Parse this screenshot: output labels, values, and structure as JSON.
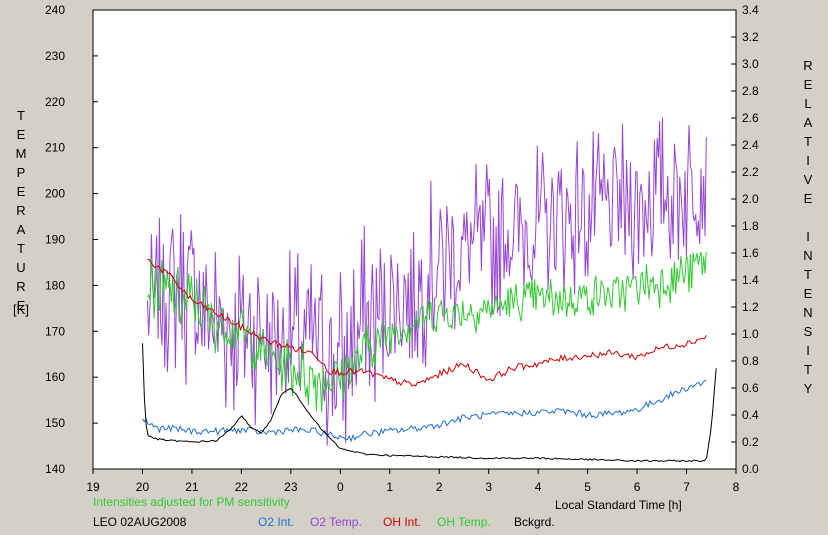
{
  "chart_data": {
    "type": "line",
    "left_axis": {
      "label": "TEMPERATURE",
      "unit": "[K]",
      "ylim": [
        140,
        240
      ],
      "ticks": [
        140,
        150,
        160,
        170,
        180,
        190,
        200,
        210,
        220,
        230,
        240
      ]
    },
    "right_axis": {
      "label": "RELATIVE INTENSITY",
      "ylim": [
        0.0,
        3.4
      ],
      "ticks": [
        "0.0",
        "0.2",
        "0.4",
        "0.6",
        "0.8",
        "1.0",
        "1.2",
        "1.4",
        "1.6",
        "1.8",
        "2.0",
        "2.2",
        "2.4",
        "2.6",
        "2.8",
        "3.0",
        "3.2",
        "3.4"
      ]
    },
    "x_axis": {
      "label": "Local Standard Time [h]",
      "xlim": [
        19,
        32
      ],
      "ticks": [
        "19",
        "20",
        "21",
        "22",
        "23",
        "0",
        "1",
        "2",
        "3",
        "4",
        "5",
        "6",
        "7",
        "8"
      ]
    },
    "note": "Intensities adjusted for PM sensitivity",
    "station_date": "LEO 02AUG2008",
    "series": [
      {
        "name": "O2 Int.",
        "axis": "right",
        "color": "#1e6ed2",
        "x": [
          20.0,
          20.3,
          20.6,
          21.0,
          21.5,
          22.0,
          22.5,
          23.0,
          23.5,
          23.9,
          24.2,
          24.5,
          25.0,
          25.5,
          26.0,
          26.5,
          27.0,
          27.5,
          28.0,
          28.5,
          29.0,
          29.5,
          30.0,
          30.5,
          31.0,
          31.4
        ],
        "values": [
          0.37,
          0.3,
          0.3,
          0.28,
          0.28,
          0.29,
          0.27,
          0.29,
          0.28,
          0.24,
          0.23,
          0.26,
          0.28,
          0.3,
          0.33,
          0.38,
          0.4,
          0.41,
          0.42,
          0.43,
          0.4,
          0.41,
          0.44,
          0.52,
          0.6,
          0.65
        ]
      },
      {
        "name": "O2 Temp.",
        "axis": "left",
        "color": "#9646d2",
        "x": [
          20.1,
          20.6,
          21.0,
          21.5,
          22.0,
          22.5,
          23.0,
          23.5,
          24.0,
          24.5,
          25.0,
          25.5,
          26.0,
          26.5,
          27.0,
          27.5,
          28.0,
          28.5,
          29.0,
          29.5,
          30.0,
          30.5,
          31.0,
          31.4
        ],
        "values": [
          175,
          180,
          178,
          172,
          171,
          170,
          168,
          168,
          162,
          172,
          176,
          180,
          185,
          188,
          190,
          192,
          193,
          195,
          196,
          197,
          198,
          200,
          202,
          205
        ],
        "spread": [
          15,
          20,
          22,
          22,
          22,
          20,
          20,
          20,
          25,
          22,
          20,
          20,
          20,
          18,
          18,
          18,
          18,
          18,
          18,
          18,
          18,
          18,
          18,
          15
        ]
      },
      {
        "name": "OH Int.",
        "axis": "right",
        "color": "#d20000",
        "x": [
          20.1,
          20.5,
          21.0,
          21.5,
          22.0,
          22.5,
          23.0,
          23.5,
          23.8,
          24.2,
          24.5,
          25.0,
          25.5,
          26.0,
          26.5,
          27.0,
          27.5,
          28.0,
          28.5,
          29.0,
          29.5,
          30.0,
          30.5,
          31.0,
          31.4
        ],
        "values": [
          1.55,
          1.45,
          1.25,
          1.15,
          1.05,
          0.95,
          0.9,
          0.85,
          0.72,
          0.72,
          0.72,
          0.66,
          0.62,
          0.7,
          0.78,
          0.66,
          0.75,
          0.78,
          0.82,
          0.84,
          0.86,
          0.83,
          0.9,
          0.93,
          0.98
        ]
      },
      {
        "name": "OH Temp.",
        "axis": "left",
        "color": "#32c832",
        "x": [
          20.1,
          20.5,
          21.0,
          21.5,
          22.0,
          22.5,
          23.0,
          23.5,
          24.0,
          24.5,
          25.0,
          25.5,
          26.0,
          26.5,
          27.0,
          27.5,
          28.0,
          28.5,
          29.0,
          29.5,
          30.0,
          30.5,
          31.0,
          31.4
        ],
        "values": [
          180,
          178,
          176,
          172,
          170,
          165,
          162,
          160,
          160,
          166,
          170,
          172,
          174,
          174,
          175,
          176,
          177,
          177,
          178,
          178,
          180,
          181,
          183,
          186
        ],
        "spread": [
          6,
          8,
          8,
          7,
          6,
          6,
          7,
          8,
          7,
          6,
          5,
          5,
          5,
          5,
          5,
          5,
          5,
          5,
          5,
          5,
          5,
          6,
          6,
          5
        ]
      },
      {
        "name": "Bckgrd.",
        "axis": "right",
        "color": "#000000",
        "x": [
          20.0,
          20.05,
          20.1,
          20.3,
          20.6,
          21.0,
          21.5,
          21.8,
          22.0,
          22.2,
          22.4,
          22.6,
          22.8,
          23.0,
          23.3,
          23.6,
          24.0,
          24.5,
          25.0,
          26.0,
          27.0,
          28.0,
          29.0,
          30.0,
          30.8,
          31.3,
          31.4,
          31.5,
          31.6
        ],
        "values": [
          0.93,
          0.4,
          0.25,
          0.22,
          0.21,
          0.2,
          0.21,
          0.3,
          0.4,
          0.3,
          0.27,
          0.36,
          0.55,
          0.6,
          0.45,
          0.3,
          0.15,
          0.11,
          0.1,
          0.09,
          0.08,
          0.08,
          0.07,
          0.06,
          0.06,
          0.06,
          0.07,
          0.3,
          0.75
        ]
      }
    ]
  }
}
